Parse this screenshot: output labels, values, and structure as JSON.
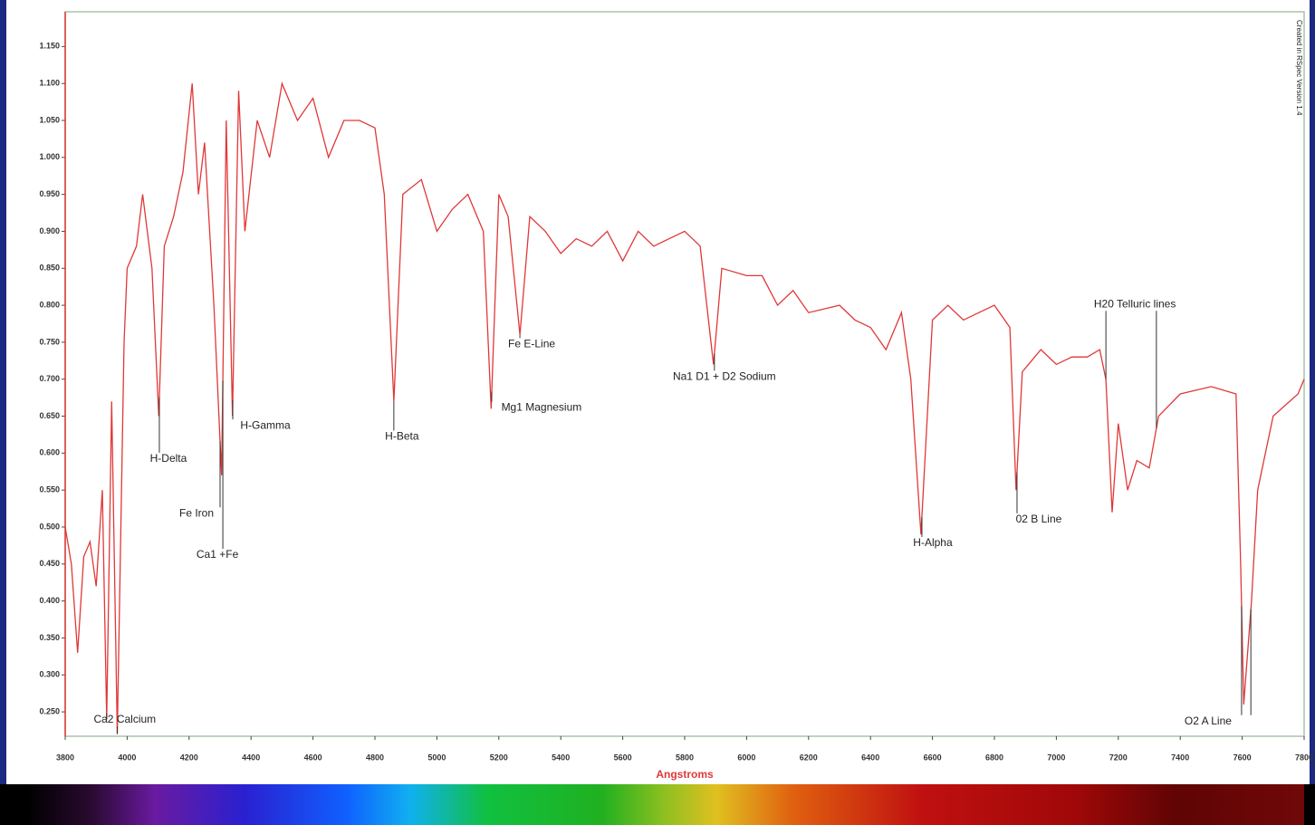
{
  "chart_data": {
    "type": "line",
    "note": "Created in RSpec Version 1.4",
    "xlabel": "Angstroms",
    "xlim": [
      3800,
      7800
    ],
    "ylim": [
      0.217,
      1.197
    ],
    "xticks": [
      3800,
      4000,
      4200,
      4400,
      4600,
      4800,
      5000,
      5200,
      5400,
      5600,
      5800,
      6000,
      6200,
      6400,
      6600,
      6800,
      7000,
      7200,
      7400,
      7600,
      7800
    ],
    "yticks": [
      {
        "value": 0.25,
        "label": "0.250"
      },
      {
        "value": 0.3,
        "label": "0.300"
      },
      {
        "value": 0.35,
        "label": "0.350"
      },
      {
        "value": 0.4,
        "label": "0.400"
      },
      {
        "value": 0.45,
        "label": "0.450"
      },
      {
        "value": 0.5,
        "label": "0.500"
      },
      {
        "value": 0.55,
        "label": "0.550"
      },
      {
        "value": 0.6,
        "label": "0.600"
      },
      {
        "value": 0.65,
        "label": "0.650"
      },
      {
        "value": 0.7,
        "label": "0.700"
      },
      {
        "value": 0.75,
        "label": "0.750"
      },
      {
        "value": 0.8,
        "label": "0.800"
      },
      {
        "value": 0.85,
        "label": "0.850"
      },
      {
        "value": 0.9,
        "label": "0.900"
      },
      {
        "value": 0.95,
        "label": "0.950"
      },
      {
        "value": 1.0,
        "label": "1.000"
      },
      {
        "value": 1.05,
        "label": "1.050"
      },
      {
        "value": 1.1,
        "label": "1.100"
      },
      {
        "value": 1.15,
        "label": "1.150"
      }
    ],
    "color": "#e03838",
    "x": [
      3800,
      3820,
      3840,
      3860,
      3880,
      3900,
      3920,
      3934,
      3950,
      3968,
      3990,
      4000,
      4030,
      4050,
      4080,
      4102,
      4120,
      4150,
      4180,
      4210,
      4230,
      4250,
      4280,
      4305,
      4320,
      4340,
      4360,
      4380,
      4420,
      4460,
      4500,
      4550,
      4600,
      4650,
      4700,
      4750,
      4800,
      4830,
      4861,
      4890,
      4950,
      5000,
      5050,
      5100,
      5150,
      5175,
      5200,
      5230,
      5268,
      5300,
      5350,
      5400,
      5450,
      5500,
      5550,
      5600,
      5650,
      5700,
      5750,
      5800,
      5850,
      5893,
      5920,
      6000,
      6050,
      6100,
      6150,
      6200,
      6300,
      6350,
      6400,
      6450,
      6500,
      6530,
      6563,
      6600,
      6650,
      6700,
      6750,
      6800,
      6850,
      6870,
      6890,
      6950,
      7000,
      7050,
      7100,
      7140,
      7160,
      7180,
      7200,
      7230,
      7260,
      7300,
      7330,
      7400,
      7500,
      7580,
      7595,
      7605,
      7630,
      7650,
      7700,
      7780,
      7800
    ],
    "values": [
      0.5,
      0.45,
      0.33,
      0.46,
      0.48,
      0.42,
      0.55,
      0.24,
      0.67,
      0.22,
      0.75,
      0.85,
      0.88,
      0.95,
      0.85,
      0.65,
      0.88,
      0.92,
      0.98,
      1.1,
      0.95,
      1.02,
      0.8,
      0.57,
      1.05,
      0.65,
      1.09,
      0.9,
      1.05,
      1.0,
      1.1,
      1.05,
      1.08,
      1.0,
      1.05,
      1.05,
      1.04,
      0.95,
      0.67,
      0.95,
      0.97,
      0.9,
      0.93,
      0.95,
      0.9,
      0.66,
      0.95,
      0.92,
      0.76,
      0.92,
      0.9,
      0.87,
      0.89,
      0.88,
      0.9,
      0.86,
      0.9,
      0.88,
      0.89,
      0.9,
      0.88,
      0.72,
      0.85,
      0.84,
      0.84,
      0.8,
      0.82,
      0.79,
      0.8,
      0.78,
      0.77,
      0.74,
      0.79,
      0.7,
      0.49,
      0.78,
      0.8,
      0.78,
      0.79,
      0.8,
      0.77,
      0.55,
      0.71,
      0.74,
      0.72,
      0.73,
      0.73,
      0.74,
      0.7,
      0.52,
      0.64,
      0.55,
      0.59,
      0.58,
      0.65,
      0.68,
      0.69,
      0.68,
      0.45,
      0.26,
      0.4,
      0.55,
      0.65,
      0.68,
      0.7
    ],
    "annotations": [
      {
        "text": "Ca2 Calcium",
        "x": [
          3934,
          3968
        ],
        "y": 0.239
      },
      {
        "text": "H-Delta",
        "x": [
          4104
        ],
        "y": 0.592
      },
      {
        "text": "Fe Iron",
        "x": [
          4300
        ],
        "y": 0.518
      },
      {
        "text": "Ca1 +Fe",
        "x": [
          4309
        ],
        "y": 0.462
      },
      {
        "text": "H-Gamma",
        "x": [
          4341
        ],
        "y": 0.637
      },
      {
        "text": "H-Beta",
        "x": [
          4861
        ],
        "y": 0.622
      },
      {
        "text": "Mg1 Magnesium",
        "x": [
          5177
        ],
        "y": 0.661
      },
      {
        "text": "Fe E-Line",
        "x": [
          5268
        ],
        "y": 0.747
      },
      {
        "text": "Na1 D1 + D2 Sodium",
        "x": [
          5896
        ],
        "y": 0.703
      },
      {
        "text": "H-Alpha",
        "x": [
          6566
        ],
        "y": 0.478
      },
      {
        "text": "02 B Line",
        "x": [
          6873
        ],
        "y": 0.51
      },
      {
        "text": "H20 Telluric lines",
        "x": [
          7160,
          7323
        ],
        "y": 0.801
      },
      {
        "text": "O2 A Line",
        "x": [
          7598,
          7628
        ],
        "y": 0.237
      }
    ]
  }
}
